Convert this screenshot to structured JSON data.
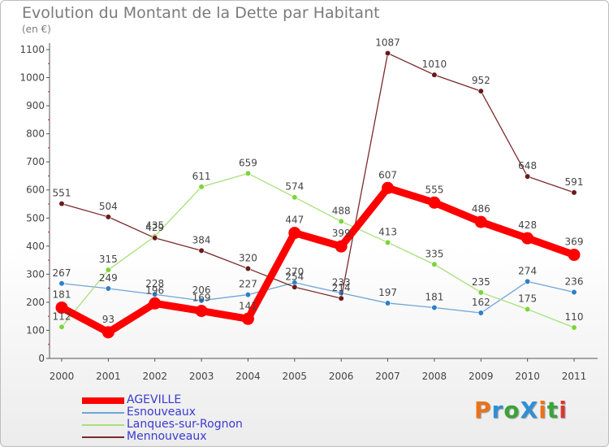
{
  "title": "Evolution du Montant de la Dette par Habitant",
  "unit_label": "(en €)",
  "brand": {
    "text": "ProXiti",
    "colors": [
      "#e8731a",
      "#2f8fd6",
      "#3aa33a",
      "#2f8fd6",
      "#e8731a",
      "#3aa33a",
      "#d63a2f"
    ]
  },
  "chart_data": {
    "type": "line",
    "title": "Evolution du Montant de la Dette par Habitant",
    "ylabel": "(en €)",
    "xlabel": "",
    "ylim": [
      0,
      1100
    ],
    "yticks": [
      0,
      100,
      200,
      300,
      400,
      500,
      600,
      700,
      800,
      900,
      1000,
      1100
    ],
    "grid": false,
    "legend_position": "bottom-left",
    "x": [
      "2000",
      "2001",
      "2002",
      "2003",
      "2004",
      "2005",
      "2006",
      "2007",
      "2008",
      "2009",
      "2010",
      "2011"
    ],
    "series": [
      {
        "name": "AGEVILLE",
        "color": "#ff0000",
        "emphasis": true,
        "values": [
          181,
          93,
          196,
          169,
          141,
          447,
          399,
          607,
          555,
          486,
          428,
          369
        ]
      },
      {
        "name": "Esnouveaux",
        "color": "#6fa5d6",
        "marker": "#2f7fc8",
        "values": [
          267,
          249,
          228,
          206,
          227,
          270,
          233,
          197,
          181,
          162,
          274,
          236
        ]
      },
      {
        "name": "Lanques-sur-Rognon",
        "color": "#a8e07a",
        "marker": "#7dd43a",
        "values": [
          112,
          315,
          435,
          611,
          659,
          574,
          488,
          413,
          335,
          235,
          175,
          110
        ]
      },
      {
        "name": "Mennouveaux",
        "color": "#7a2a2a",
        "marker": "#6a1a1a",
        "values": [
          551,
          504,
          429,
          384,
          320,
          254,
          214,
          1087,
          1010,
          952,
          648,
          591
        ]
      }
    ]
  }
}
